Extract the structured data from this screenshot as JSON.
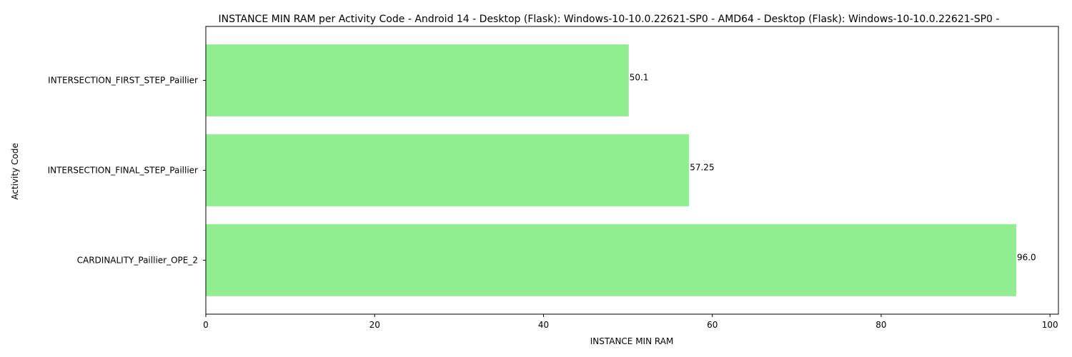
{
  "chart_data": {
    "type": "bar",
    "orientation": "horizontal",
    "title": "INSTANCE MIN RAM per Activity Code - Android 14 - Desktop (Flask): Windows-10-10.0.22621-SP0 - AMD64 - Desktop (Flask): Windows-10-10.0.22621-SP0 -",
    "xlabel": "INSTANCE MIN RAM",
    "ylabel": "Activity Code",
    "xlim": [
      0,
      101
    ],
    "xticks": [
      0,
      20,
      40,
      60,
      80,
      100
    ],
    "categories": [
      "CARDINALITY_Paillier_OPE_2",
      "INTERSECTION_FINAL_STEP_Paillier",
      "INTERSECTION_FIRST_STEP_Paillier"
    ],
    "values": [
      96.0,
      57.25,
      50.1
    ],
    "value_labels": [
      "96.0",
      "57.25",
      "50.1"
    ],
    "bar_color": "#90ee90",
    "grid": false,
    "legend": "none"
  }
}
